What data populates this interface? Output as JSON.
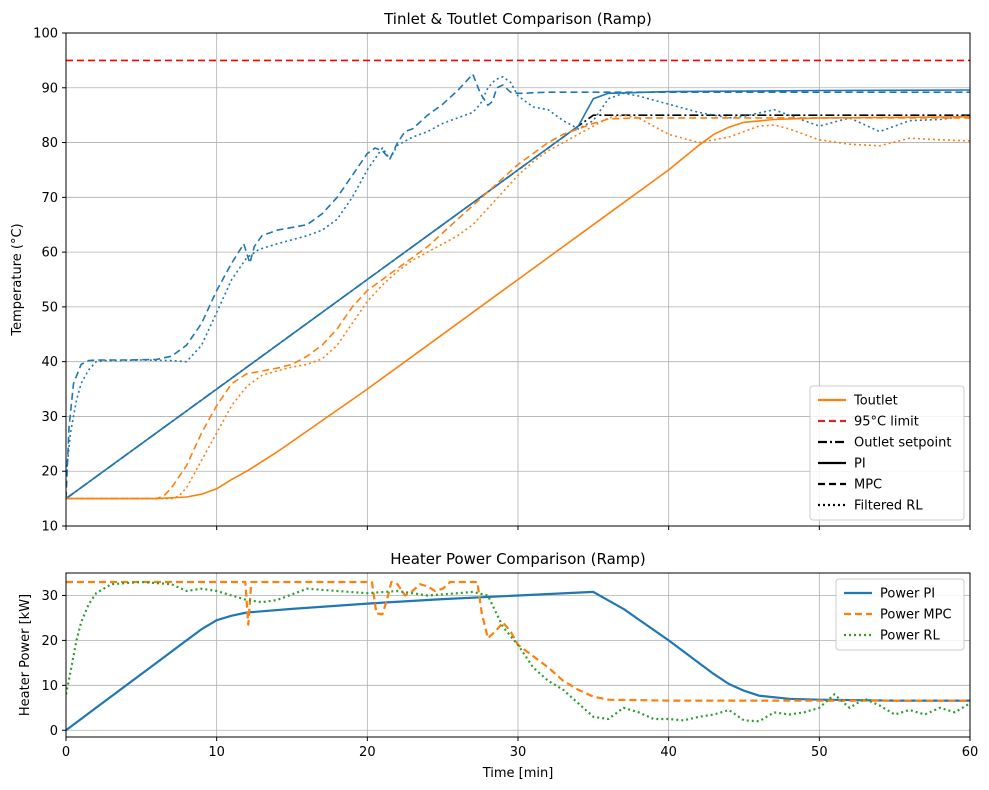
{
  "chart_data": [
    {
      "type": "line",
      "title": "Tinlet & Toutlet Comparison (Ramp)",
      "xlabel": "",
      "ylabel": "Temperature (°C)",
      "xlim": [
        0,
        60
      ],
      "ylim": [
        10,
        100
      ],
      "xticks": [
        0,
        10,
        20,
        30,
        40,
        50,
        60
      ],
      "xtick_labels_visible": false,
      "yticks": [
        10,
        20,
        30,
        40,
        50,
        60,
        70,
        80,
        90,
        100
      ],
      "grid": true,
      "legend_position": "lower-right",
      "legend": [
        {
          "label": "Toutlet",
          "color": "#ff7f0e",
          "style": "solid"
        },
        {
          "label": "95°C limit",
          "color": "#d62728",
          "style": "dashed"
        },
        {
          "label": "Outlet setpoint",
          "color": "#000000",
          "style": "dashdot"
        },
        {
          "label": "PI",
          "color": "#000000",
          "style": "solid"
        },
        {
          "label": "MPC",
          "color": "#000000",
          "style": "dashed"
        },
        {
          "label": "Filtered RL",
          "color": "#000000",
          "style": "dotted"
        }
      ],
      "series": [
        {
          "key": "limit",
          "color": "#ff0000",
          "style": "dashed",
          "width": 1.6,
          "x": [
            0,
            60
          ],
          "y": [
            95,
            95
          ]
        },
        {
          "key": "setpoint",
          "color": "#000000",
          "style": "dashdot",
          "width": 1.6,
          "x": [
            0,
            35,
            60
          ],
          "y": [
            15,
            85,
            85
          ]
        },
        {
          "key": "tin_pi",
          "color": "#1f77b4",
          "style": "solid",
          "width": 1.6,
          "x": [
            0,
            5,
            10,
            15,
            20,
            25,
            30,
            34,
            35,
            36,
            40,
            50,
            60
          ],
          "y": [
            15,
            25,
            35,
            45,
            55,
            65,
            75,
            83,
            88,
            89,
            89.3,
            89.5,
            89.6
          ]
        },
        {
          "key": "tin_mpc",
          "color": "#1f77b4",
          "style": "dashed",
          "width": 1.6,
          "x": [
            0,
            0.2,
            0.5,
            1,
            1.5,
            2,
            4,
            6,
            7,
            8,
            9,
            10,
            11,
            11.8,
            12.2,
            12.5,
            13,
            14,
            16,
            17,
            18,
            19,
            20,
            20.5,
            21,
            21.5,
            22,
            22.5,
            23,
            24,
            25,
            26,
            27,
            27.5,
            28,
            28.3,
            28.6,
            29,
            29.5,
            30,
            30.5,
            31,
            32,
            35,
            40,
            50,
            60
          ],
          "y": [
            15,
            28,
            36,
            39.5,
            40.2,
            40.3,
            40.3,
            40.4,
            41,
            43,
            47,
            53,
            58,
            61.5,
            58,
            61,
            63,
            64,
            65,
            67,
            70,
            74,
            78,
            79,
            78.5,
            77,
            80,
            82,
            82.5,
            85,
            87,
            89.5,
            92.5,
            89,
            86.8,
            87.5,
            90,
            90.5,
            89.2,
            89,
            89,
            89.1,
            89.2,
            89.2,
            89.2,
            89.2,
            89.2
          ]
        },
        {
          "key": "tin_rl",
          "color": "#1f77b4",
          "style": "dotted",
          "width": 1.6,
          "x": [
            0,
            0.3,
            0.7,
            1,
            1.5,
            2,
            2.5,
            3,
            5,
            7,
            8,
            9,
            10,
            11,
            12,
            12.3,
            12.8,
            14,
            16,
            17,
            18,
            19,
            20,
            21,
            21.5,
            22,
            23,
            24,
            25,
            26,
            27,
            27.5,
            28,
            28.5,
            29,
            29.5,
            30,
            31,
            32,
            33,
            34,
            35,
            36,
            37,
            38,
            40,
            42,
            44,
            45,
            47,
            48,
            50,
            52,
            54,
            56,
            58,
            60
          ],
          "y": [
            19,
            27,
            33,
            36,
            38.5,
            40,
            40.2,
            40.2,
            40.3,
            40.2,
            40,
            43,
            49,
            55,
            59,
            59.5,
            60.5,
            61.5,
            63,
            64,
            66,
            70,
            75,
            79,
            77,
            79.5,
            81,
            82,
            83.5,
            84.5,
            85.5,
            87,
            90,
            91.5,
            92,
            91,
            88.5,
            86.5,
            86,
            84,
            82.5,
            84,
            88,
            89,
            88.5,
            87,
            85.5,
            84.5,
            84.8,
            86,
            85,
            83,
            84.5,
            82,
            84,
            84.2,
            85
          ]
        },
        {
          "key": "tout_pi",
          "color": "#ff7f0e",
          "style": "solid",
          "width": 1.6,
          "x": [
            0,
            6,
            8,
            9,
            10,
            11,
            12,
            14,
            20,
            25,
            30,
            35,
            40,
            42,
            43,
            44,
            45,
            47,
            50,
            55,
            60
          ],
          "y": [
            15,
            15,
            15.3,
            15.8,
            16.8,
            18.5,
            20,
            23.5,
            35,
            45,
            55,
            65,
            75,
            79.5,
            81.5,
            82.8,
            83.7,
            84.2,
            84.5,
            84.6,
            84.7
          ]
        },
        {
          "key": "tout_mpc",
          "color": "#ff7f0e",
          "style": "dashed",
          "width": 1.6,
          "x": [
            0,
            6,
            6.5,
            7,
            8,
            9,
            10,
            11,
            12,
            13,
            14,
            15,
            16,
            17,
            18,
            19,
            20,
            21,
            22,
            23,
            24,
            25,
            26,
            27,
            28,
            29,
            30,
            31,
            32,
            33,
            34,
            35,
            36,
            38,
            40,
            45,
            50,
            55,
            60
          ],
          "y": [
            15,
            15,
            15.5,
            17,
            21,
            27,
            32,
            36,
            37.8,
            38.3,
            38.8,
            39.5,
            41,
            43,
            46,
            50,
            53,
            55,
            57,
            59,
            61,
            63.5,
            66,
            68.5,
            71,
            73.5,
            76,
            78,
            80,
            81.5,
            82.5,
            83.5,
            84.3,
            84.5,
            84.5,
            84.5,
            84.5,
            84.5,
            84.5
          ]
        },
        {
          "key": "tout_rl",
          "color": "#ff7f0e",
          "style": "dotted",
          "width": 1.6,
          "x": [
            0,
            7,
            7.5,
            8,
            9,
            10,
            11,
            12,
            13,
            14,
            15,
            16,
            17,
            18,
            19,
            20,
            21,
            22,
            23,
            24,
            25,
            26,
            27,
            28,
            29,
            30,
            31,
            32,
            33,
            34,
            35,
            36,
            37,
            38,
            39,
            40,
            42,
            44,
            46,
            47,
            48,
            50,
            52,
            54,
            56,
            58,
            60
          ],
          "y": [
            15,
            15,
            15.5,
            17,
            22,
            27,
            32,
            35.5,
            37.5,
            38.3,
            39,
            39.5,
            40.5,
            43,
            47,
            51,
            54,
            56.5,
            58.5,
            60,
            61.5,
            63,
            65,
            68,
            71,
            74,
            76.5,
            78.5,
            80,
            81.5,
            83,
            84.5,
            85,
            84.5,
            83,
            81.5,
            80,
            81,
            83,
            83.2,
            82.5,
            80.5,
            79.7,
            79.4,
            80.8,
            80.5,
            80.3
          ]
        }
      ]
    },
    {
      "type": "line",
      "title": "Heater Power Comparison (Ramp)",
      "xlabel": "Time [min]",
      "ylabel": "Heater Power [kW]",
      "xlim": [
        0,
        60
      ],
      "ylim": [
        -1.5,
        35
      ],
      "xticks": [
        0,
        10,
        20,
        30,
        40,
        50,
        60
      ],
      "yticks": [
        0,
        10,
        20,
        30
      ],
      "grid": true,
      "legend_position": "upper-right",
      "legend": [
        {
          "label": "Power PI",
          "color": "#1f77b4",
          "style": "solid"
        },
        {
          "label": "Power MPC",
          "color": "#ff7f0e",
          "style": "dashed"
        },
        {
          "label": "Power RL",
          "color": "#2ca02c",
          "style": "dotted"
        }
      ],
      "series": [
        {
          "key": "p_pi",
          "name": "Power PI",
          "color": "#1f77b4",
          "style": "solid",
          "width": 2.2,
          "x": [
            0,
            2,
            4,
            6,
            8,
            9,
            10,
            11,
            12,
            15,
            20,
            25,
            30,
            35,
            37,
            40,
            42,
            43,
            44,
            45,
            46,
            48,
            50,
            55,
            60
          ],
          "y": [
            0,
            5,
            10,
            15,
            20,
            22.5,
            24.5,
            25.5,
            26.2,
            27,
            28.2,
            29.2,
            30,
            30.8,
            27,
            20,
            15,
            12.5,
            10.3,
            8.8,
            7.7,
            7,
            6.8,
            6.6,
            6.6
          ]
        },
        {
          "key": "p_mpc",
          "name": "Power MPC",
          "color": "#ff7f0e",
          "style": "dashed",
          "width": 2.2,
          "x": [
            0,
            11.9,
            12.1,
            12.3,
            12.5,
            20.3,
            20.6,
            21,
            21.3,
            21.6,
            22,
            22.5,
            23,
            23.5,
            24,
            24.5,
            25,
            25.5,
            26,
            27.3,
            27.6,
            28,
            28.5,
            29,
            29.5,
            30,
            31,
            32,
            33,
            34,
            35,
            36,
            40,
            50,
            60
          ],
          "y": [
            33,
            33,
            23.5,
            33,
            33,
            33,
            26,
            25.8,
            29,
            33,
            32.5,
            30,
            31,
            32.5,
            32,
            31,
            31.5,
            33,
            33,
            33,
            26,
            20.5,
            22,
            24,
            22,
            19,
            16.5,
            14,
            11,
            9,
            7.5,
            6.8,
            6.6,
            6.6,
            6.6
          ]
        },
        {
          "key": "p_rl",
          "name": "Power RL",
          "color": "#2ca02c",
          "style": "dotted",
          "width": 2.2,
          "x": [
            0,
            0.3,
            0.7,
            1,
            1.5,
            2,
            2.5,
            3,
            5,
            7,
            8,
            9,
            10,
            11,
            12,
            13,
            14,
            16,
            18,
            20,
            22,
            24,
            26,
            27,
            28,
            29,
            30,
            31,
            32,
            33,
            34,
            35,
            36,
            37,
            38,
            39,
            40,
            41,
            42,
            43,
            44,
            45,
            46,
            47,
            48,
            49,
            50,
            51,
            52,
            53,
            54,
            55,
            56,
            57,
            58,
            59,
            60
          ],
          "y": [
            8,
            13,
            20,
            24,
            28,
            30.5,
            31.5,
            32.5,
            33,
            32.5,
            31,
            31.5,
            31,
            30,
            29,
            28.5,
            29,
            31.5,
            31,
            30.5,
            31,
            30,
            30.5,
            30.8,
            30,
            23,
            19,
            14,
            11,
            9,
            6,
            3,
            2.5,
            5,
            4,
            2.5,
            2.5,
            2.2,
            3,
            3.5,
            4.5,
            2.2,
            2,
            4,
            3.5,
            4,
            5,
            8,
            5,
            7,
            5.5,
            3.5,
            4.5,
            3.5,
            5,
            4,
            6
          ]
        }
      ]
    }
  ]
}
